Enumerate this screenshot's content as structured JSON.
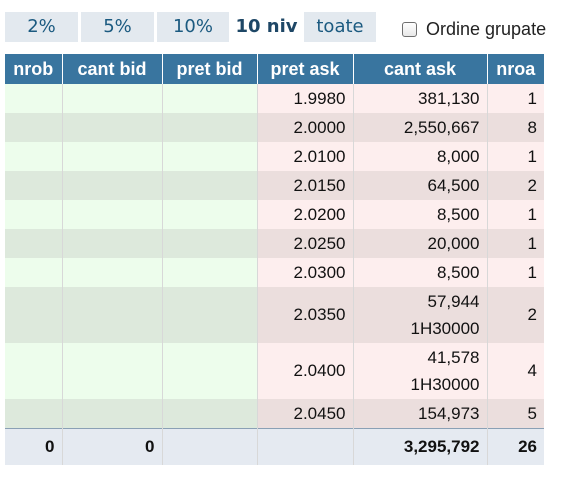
{
  "tabs": [
    {
      "label": "2%",
      "active": false
    },
    {
      "label": "5%",
      "active": false
    },
    {
      "label": "10%",
      "active": false
    },
    {
      "label": "10 niv",
      "active": true
    },
    {
      "label": "toate",
      "active": false
    }
  ],
  "group_checkbox": {
    "label": "Ordine grupate",
    "checked": false
  },
  "columns": [
    "nrob",
    "cant bid",
    "pret bid",
    "pret ask",
    "cant ask",
    "nroa"
  ],
  "rows": [
    {
      "nrob": "",
      "cant_bid": "",
      "pret_bid": "",
      "pret_ask": "1.9980",
      "cant_ask": "381,130",
      "cant_ask_extra": "",
      "nroa": "1"
    },
    {
      "nrob": "",
      "cant_bid": "",
      "pret_bid": "",
      "pret_ask": "2.0000",
      "cant_ask": "2,550,667",
      "cant_ask_extra": "",
      "nroa": "8"
    },
    {
      "nrob": "",
      "cant_bid": "",
      "pret_bid": "",
      "pret_ask": "2.0100",
      "cant_ask": "8,000",
      "cant_ask_extra": "",
      "nroa": "1"
    },
    {
      "nrob": "",
      "cant_bid": "",
      "pret_bid": "",
      "pret_ask": "2.0150",
      "cant_ask": "64,500",
      "cant_ask_extra": "",
      "nroa": "2"
    },
    {
      "nrob": "",
      "cant_bid": "",
      "pret_bid": "",
      "pret_ask": "2.0200",
      "cant_ask": "8,500",
      "cant_ask_extra": "",
      "nroa": "1"
    },
    {
      "nrob": "",
      "cant_bid": "",
      "pret_bid": "",
      "pret_ask": "2.0250",
      "cant_ask": "20,000",
      "cant_ask_extra": "",
      "nroa": "1"
    },
    {
      "nrob": "",
      "cant_bid": "",
      "pret_bid": "",
      "pret_ask": "2.0300",
      "cant_ask": "8,500",
      "cant_ask_extra": "",
      "nroa": "1"
    },
    {
      "nrob": "",
      "cant_bid": "",
      "pret_bid": "",
      "pret_ask": "2.0350",
      "cant_ask": "57,944",
      "cant_ask_extra": "1H30000",
      "nroa": "2"
    },
    {
      "nrob": "",
      "cant_bid": "",
      "pret_bid": "",
      "pret_ask": "2.0400",
      "cant_ask": "41,578",
      "cant_ask_extra": "1H30000",
      "nroa": "4"
    },
    {
      "nrob": "",
      "cant_bid": "",
      "pret_bid": "",
      "pret_ask": "2.0450",
      "cant_ask": "154,973",
      "cant_ask_extra": "",
      "nroa": "5"
    }
  ],
  "footer": {
    "nrob": "0",
    "cant_bid": "0",
    "pret_bid": "",
    "pret_ask": "",
    "cant_ask": "3,295,792",
    "nroa": "26"
  },
  "colors": {
    "header_bg": "#39759f",
    "bid_light": "#edfdec",
    "bid_dark": "#dde9dc",
    "ask_light": "#fdeeee",
    "ask_dark": "#ebdedd",
    "footer_bg": "#e5eaf1"
  }
}
